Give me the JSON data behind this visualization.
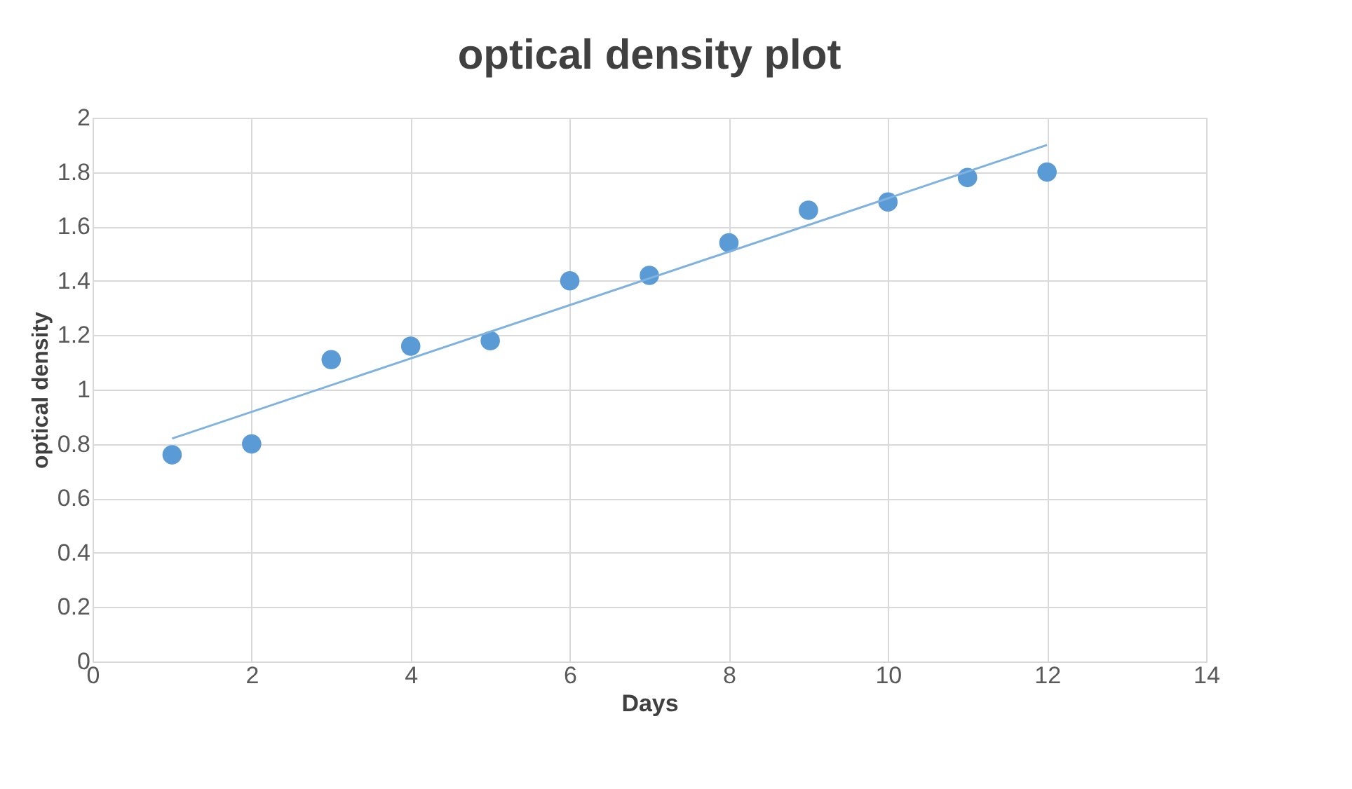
{
  "chart_data": {
    "type": "scatter",
    "title": "optical density plot",
    "xlabel": "Days",
    "ylabel": "optical density",
    "series": [
      {
        "color": "#5b9bd5",
        "marker": "circle",
        "x": [
          1,
          2,
          3,
          4,
          5,
          6,
          7,
          8,
          9,
          10,
          11,
          12
        ],
        "values": [
          0.76,
          0.8,
          1.11,
          1.16,
          1.18,
          1.4,
          1.42,
          1.54,
          1.66,
          1.69,
          1.78,
          1.8
        ]
      },
      {
        "type": "line",
        "color": "#7fb2df",
        "x": [
          1,
          12
        ],
        "values": [
          0.82,
          1.9
        ]
      }
    ],
    "xlim": [
      0,
      14
    ],
    "xticks": [
      0,
      2,
      4,
      6,
      8,
      10,
      12,
      14
    ],
    "ylim": [
      0,
      2
    ],
    "yticks": [
      0,
      0.2,
      0.4,
      0.6,
      0.8,
      1,
      1.2,
      1.4,
      1.6,
      1.8,
      2
    ],
    "grid": true
  }
}
